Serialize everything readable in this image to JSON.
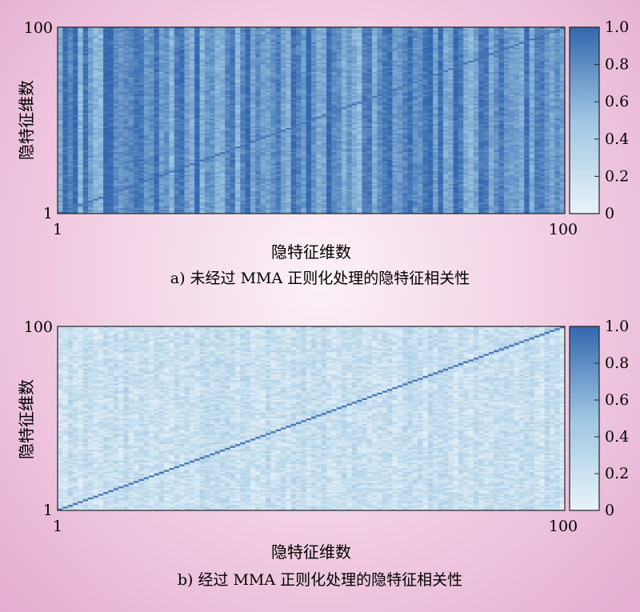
{
  "chart_data": [
    {
      "type": "heatmap",
      "caption": "a) 未经过 MMA 正则化处理的隐特征相关性",
      "xlabel": "隐特征维数",
      "ylabel": "隐特征维数",
      "x_tick_labels": [
        "1",
        "100"
      ],
      "y_tick_labels": [
        "1",
        "100"
      ],
      "grid": false,
      "colorbar": {
        "position": "right",
        "range": [
          0,
          1
        ],
        "tick_labels": [
          "0",
          "0.2",
          "0.4",
          "0.6",
          "0.8",
          "1.0"
        ],
        "color_low": "#e8f3f9",
        "color_high": "#3367ae"
      },
      "correlation_pattern": {
        "matrix_size": 100,
        "value_range": [
          0.35,
          1.0
        ],
        "typical_value": 0.78,
        "column_striped": true,
        "diagonal_value": 1.0
      }
    },
    {
      "type": "heatmap",
      "caption": "b) 经过 MMA 正则化处理的隐特征相关性",
      "xlabel": "隐特征维数",
      "ylabel": "隐特征维数",
      "x_tick_labels": [
        "1",
        "100"
      ],
      "y_tick_labels": [
        "1",
        "100"
      ],
      "grid": false,
      "colorbar": {
        "position": "right",
        "range": [
          0,
          1
        ],
        "tick_labels": [
          "0",
          "0.2",
          "0.4",
          "0.6",
          "0.8",
          "1.0"
        ],
        "color_low": "#e8f3f9",
        "color_high": "#3367ae"
      },
      "correlation_pattern": {
        "matrix_size": 100,
        "value_range": [
          0.0,
          0.55
        ],
        "typical_value": 0.22,
        "column_striped": false,
        "diagonal_value": 1.0
      }
    }
  ]
}
